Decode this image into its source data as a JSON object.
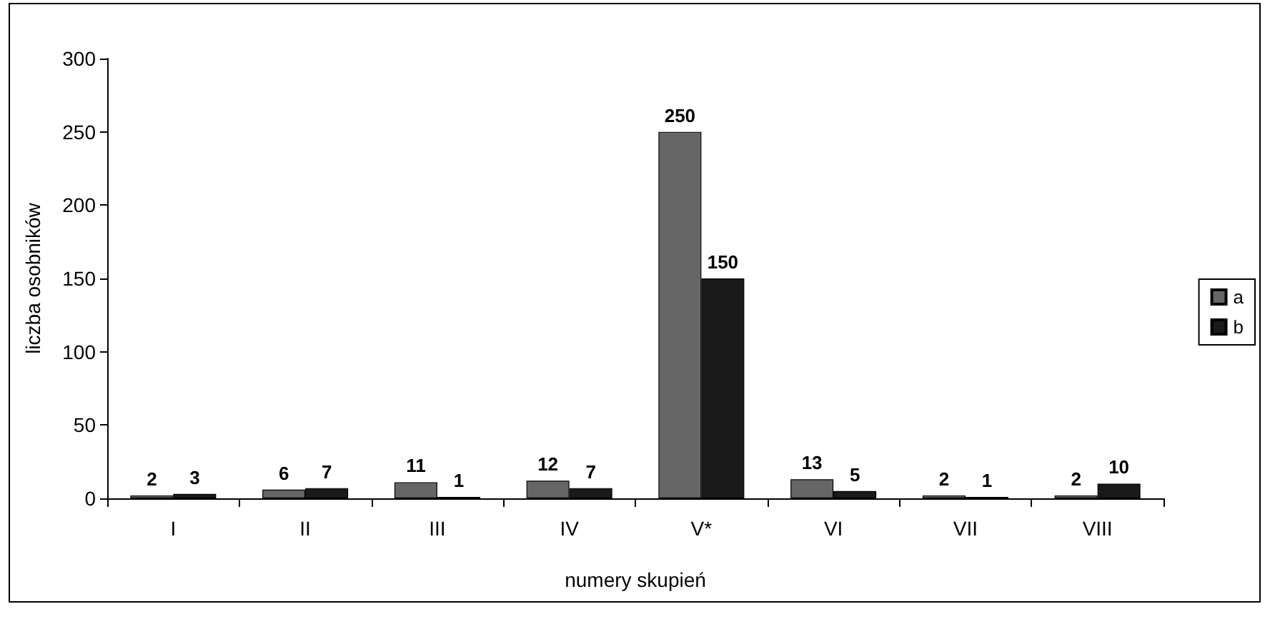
{
  "chart_data": {
    "type": "bar",
    "xlabel": "numery skupień",
    "ylabel": "liczba osobników",
    "categories": [
      "I",
      "II",
      "III",
      "IV",
      "V*",
      "VI",
      "VII",
      "VIII"
    ],
    "series": [
      {
        "name": "a",
        "color": "#666666",
        "values": [
          2,
          6,
          11,
          12,
          250,
          13,
          2,
          2
        ]
      },
      {
        "name": "b",
        "color": "#1a1a1a",
        "values": [
          3,
          7,
          1,
          7,
          150,
          5,
          1,
          10
        ]
      }
    ],
    "ylim": [
      0,
      300
    ],
    "yticks": [
      0,
      50,
      100,
      150,
      200,
      250,
      300
    ],
    "grid": false,
    "legend": "right",
    "data_labels": true
  }
}
